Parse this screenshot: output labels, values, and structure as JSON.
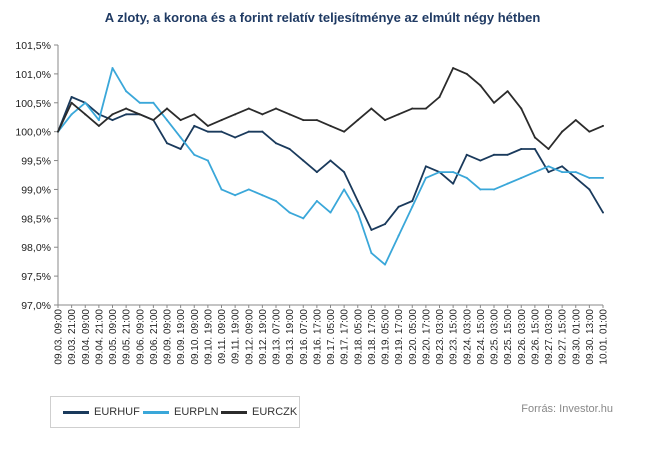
{
  "chart_data": {
    "type": "line",
    "title": "A zloty, a korona és a forint relatív teljesítménye az elmúlt négy hétben",
    "xlabel": "",
    "ylabel": "",
    "ylim": [
      97.0,
      101.5
    ],
    "yticks": [
      "101,5%",
      "101,0%",
      "100,5%",
      "100,0%",
      "99,5%",
      "99,0%",
      "98,5%",
      "98,0%",
      "97,5%",
      "97,0%"
    ],
    "ytick_values": [
      101.5,
      101.0,
      100.5,
      100.0,
      99.5,
      99.0,
      98.5,
      98.0,
      97.5,
      97.0
    ],
    "categories": [
      "09.03. 09:00",
      "09.03. 21:00",
      "09.04. 09:00",
      "09.04. 21:00",
      "09.05. 09:00",
      "09.05. 21:00",
      "09.06. 09:00",
      "09.06. 21:00",
      "09.09. 09:00",
      "09.09. 19:00",
      "09.10. 09:00",
      "09.10. 19:00",
      "09.11. 09:00",
      "09.11. 19:00",
      "09.12. 09:00",
      "09.12. 19:00",
      "09.13. 07:00",
      "09.13. 19:00",
      "09.16. 07:00",
      "09.16. 17:00",
      "09.17. 05:00",
      "09.17. 17:00",
      "09.18. 05:00",
      "09.18. 17:00",
      "09.19. 05:00",
      "09.19. 17:00",
      "09.20. 05:00",
      "09.20. 17:00",
      "09.23. 03:00",
      "09.23. 15:00",
      "09.24. 03:00",
      "09.24. 15:00",
      "09.25. 03:00",
      "09.25. 15:00",
      "09.26. 03:00",
      "09.26. 15:00",
      "09.27. 03:00",
      "09.27. 15:00",
      "09.30. 01:00",
      "09.30. 13:00",
      "10.01. 01:00"
    ],
    "grid": false,
    "legend_position": "bottom-left",
    "series": [
      {
        "name": "EURHUF",
        "color": "#1a3a5c",
        "values": [
          100.0,
          100.6,
          100.5,
          100.3,
          100.2,
          100.3,
          100.3,
          100.2,
          99.8,
          99.7,
          100.1,
          100.0,
          100.0,
          99.9,
          100.0,
          100.0,
          99.8,
          99.7,
          99.5,
          99.3,
          99.5,
          99.3,
          98.8,
          98.3,
          98.4,
          98.7,
          98.8,
          99.4,
          99.3,
          99.1,
          99.6,
          99.5,
          99.6,
          99.6,
          99.7,
          99.7,
          99.3,
          99.4,
          99.2,
          99.0,
          98.6
        ]
      },
      {
        "name": "EURPLN",
        "color": "#3aa7d9",
        "values": [
          100.0,
          100.3,
          100.5,
          100.2,
          101.1,
          100.7,
          100.5,
          100.5,
          100.2,
          99.9,
          99.6,
          99.5,
          99.0,
          98.9,
          99.0,
          98.9,
          98.8,
          98.6,
          98.5,
          98.8,
          98.6,
          99.0,
          98.6,
          97.9,
          97.7,
          98.2,
          98.7,
          99.2,
          99.3,
          99.3,
          99.2,
          99.0,
          99.0,
          99.1,
          99.2,
          99.3,
          99.4,
          99.3,
          99.3,
          99.2,
          99.2
        ]
      },
      {
        "name": "EURCZK",
        "color": "#2b2b2b",
        "values": [
          100.0,
          100.5,
          100.3,
          100.1,
          100.3,
          100.4,
          100.3,
          100.2,
          100.4,
          100.2,
          100.3,
          100.1,
          100.2,
          100.3,
          100.4,
          100.3,
          100.4,
          100.3,
          100.2,
          100.2,
          100.1,
          100.0,
          100.2,
          100.4,
          100.2,
          100.3,
          100.4,
          100.4,
          100.6,
          101.1,
          101.0,
          100.8,
          100.5,
          100.7,
          100.4,
          99.9,
          99.7,
          100.0,
          100.2,
          100.0,
          100.1
        ]
      }
    ]
  },
  "source": "Forrás: Investor.hu"
}
